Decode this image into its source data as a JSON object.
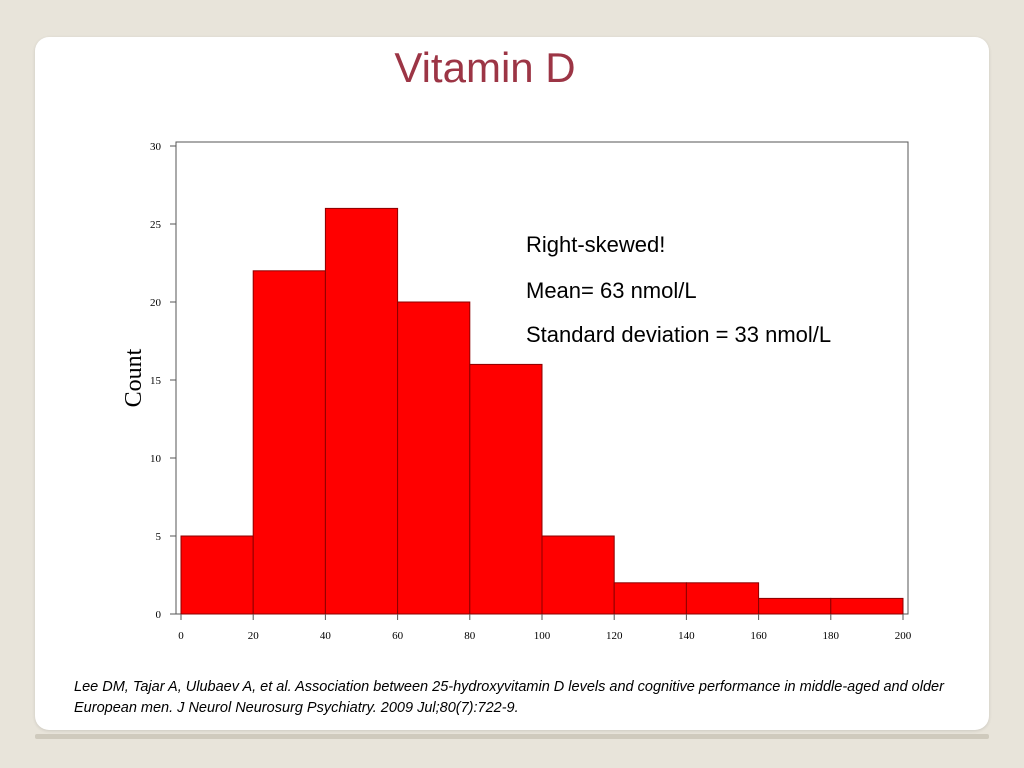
{
  "slide": {
    "title": "Vitamin D",
    "citation": "Lee DM, Tajar A, Ulubaev A, et al. Association between 25-hydroxyvitamin D levels and cognitive performance in middle-aged and older European men. J Neurol Neurosurg Psychiatry. 2009 Jul;80(7):722-9."
  },
  "colors": {
    "title": "#9c3545",
    "bar_fill": "#ff0000",
    "bar_stroke": "#8b0000"
  },
  "chart_data": {
    "type": "bar",
    "title": "",
    "xlabel": "",
    "ylabel": "Count",
    "xlim": [
      0,
      200
    ],
    "ylim": [
      0,
      30
    ],
    "xticks": [
      0,
      20,
      40,
      60,
      80,
      100,
      120,
      140,
      160,
      180,
      200
    ],
    "yticks": [
      0,
      5,
      10,
      15,
      20,
      25,
      30
    ],
    "bins": [
      {
        "from": 0,
        "to": 20,
        "count": 5
      },
      {
        "from": 20,
        "to": 40,
        "count": 22
      },
      {
        "from": 40,
        "to": 60,
        "count": 26
      },
      {
        "from": 60,
        "to": 80,
        "count": 20
      },
      {
        "from": 80,
        "to": 100,
        "count": 16
      },
      {
        "from": 100,
        "to": 120,
        "count": 5
      },
      {
        "from": 120,
        "to": 140,
        "count": 2
      },
      {
        "from": 140,
        "to": 160,
        "count": 2
      },
      {
        "from": 160,
        "to": 180,
        "count": 1
      },
      {
        "from": 180,
        "to": 200,
        "count": 1
      }
    ],
    "annotations": [
      "Right-skewed!",
      "Mean= 63 nmol/L",
      "Standard deviation = 33 nmol/L"
    ],
    "grid": false,
    "legend": "none"
  }
}
